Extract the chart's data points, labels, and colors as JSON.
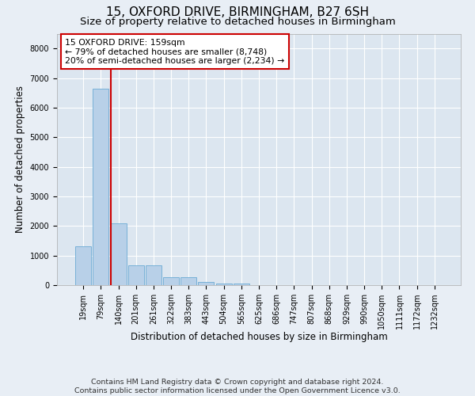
{
  "title_line1": "15, OXFORD DRIVE, BIRMINGHAM, B27 6SH",
  "title_line2": "Size of property relative to detached houses in Birmingham",
  "xlabel": "Distribution of detached houses by size in Birmingham",
  "ylabel": "Number of detached properties",
  "footnote": "Contains HM Land Registry data © Crown copyright and database right 2024.\nContains public sector information licensed under the Open Government Licence v3.0.",
  "categories": [
    "19sqm",
    "79sqm",
    "140sqm",
    "201sqm",
    "261sqm",
    "322sqm",
    "383sqm",
    "443sqm",
    "504sqm",
    "565sqm",
    "625sqm",
    "686sqm",
    "747sqm",
    "807sqm",
    "868sqm",
    "929sqm",
    "990sqm",
    "1050sqm",
    "1111sqm",
    "1172sqm",
    "1232sqm"
  ],
  "values": [
    1320,
    6630,
    2080,
    660,
    660,
    280,
    270,
    110,
    60,
    50,
    0,
    0,
    0,
    0,
    0,
    0,
    0,
    0,
    0,
    0,
    0
  ],
  "bar_color": "#b8d0e8",
  "bar_edge_color": "#6aaad4",
  "vline_color": "#cc0000",
  "annotation_text": "15 OXFORD DRIVE: 159sqm\n← 79% of detached houses are smaller (8,748)\n20% of semi-detached houses are larger (2,234) →",
  "annotation_box_color": "#ffffff",
  "annotation_box_edge": "#cc0000",
  "ylim": [
    0,
    8500
  ],
  "yticks": [
    0,
    1000,
    2000,
    3000,
    4000,
    5000,
    6000,
    7000,
    8000
  ],
  "background_color": "#e8eef5",
  "plot_bg_color": "#dce6f0",
  "grid_color": "#ffffff",
  "title_fontsize": 11,
  "subtitle_fontsize": 9.5,
  "tick_fontsize": 7,
  "ylabel_fontsize": 8.5,
  "xlabel_fontsize": 8.5,
  "footnote_fontsize": 6.8,
  "property_index": 2,
  "property_value": 159
}
